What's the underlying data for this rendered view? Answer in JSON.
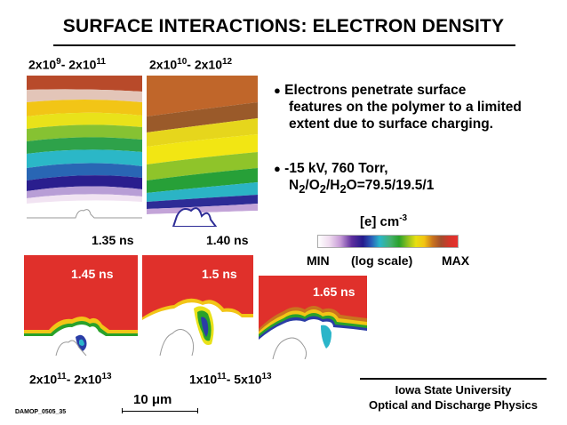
{
  "title": "SURFACE INTERACTIONS: ELECTRON DENSITY",
  "ranges": {
    "top_left": {
      "a": "2x10",
      "a_exp": "9",
      "b": "- 2x10",
      "b_exp": "11"
    },
    "top_right": {
      "a": "2x10",
      "a_exp": "10",
      "b": "- 2x10",
      "b_exp": "12"
    },
    "bottom_left": {
      "a": "2x10",
      "a_exp": "11",
      "b": "- 2x10",
      "b_exp": "13"
    },
    "bottom_right": {
      "a": "1x10",
      "a_exp": "11",
      "b": "- 5x10",
      "b_exp": "13"
    }
  },
  "panels": [
    {
      "time": "1.35 ns"
    },
    {
      "time": "1.40 ns"
    },
    {
      "time": "1.45 ns"
    },
    {
      "time": "1.5 ns"
    },
    {
      "time": "1.65 ns"
    }
  ],
  "bullets": {
    "b1": [
      "Electrons penetrate surface",
      "features on the polymer to a limited",
      "extent due to surface charging."
    ],
    "b2_line1": "-15 kV, 760 Torr,",
    "b2_line2": {
      "p1": "N",
      "s1": "2",
      "p2": "/O",
      "s2": "2",
      "p3": "/H",
      "s3": "2",
      "p4": "O=79.5/19.5/1"
    }
  },
  "colorbar": {
    "label": "[e]  cm",
    "label_exp": "-3",
    "min": "MIN",
    "scale": "(log scale)",
    "max": "MAX"
  },
  "scale_bar": "10 μm",
  "affiliation": {
    "line1": "Iowa State University",
    "line2": "Optical and Discharge Physics"
  },
  "code": "DAMOP_0505_35",
  "colors": {
    "max_red": "#e0302b",
    "background": "#ffffff"
  }
}
